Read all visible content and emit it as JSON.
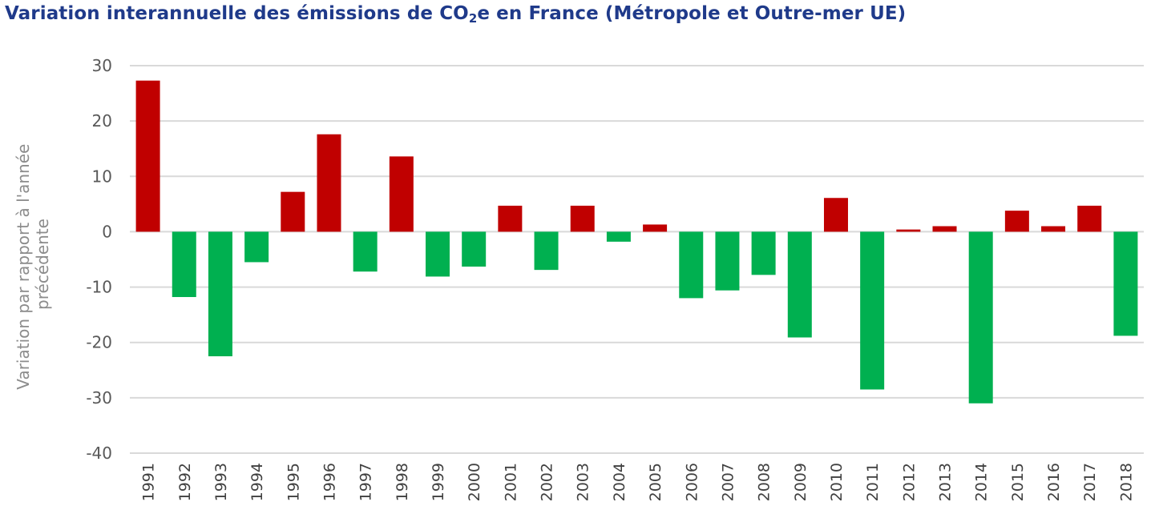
{
  "chart_data": {
    "type": "bar",
    "title": {
      "pre": "Variation interannuelle des émissions de CO",
      "sub": "2",
      "post": "e en France (Métropole et Outre-mer UE)"
    },
    "xlabel": "",
    "ylabel_lines": [
      "Variation par rapport à l'année",
      "précédente"
    ],
    "ylim": [
      -40,
      30
    ],
    "yticks": [
      30,
      20,
      10,
      0,
      -10,
      -20,
      -30,
      -40
    ],
    "grid": true,
    "legend": "none",
    "colors": {
      "positive": "#c00000",
      "negative": "#00b050",
      "grid": "#d9d9d9"
    },
    "categories": [
      "1991",
      "1992",
      "1993",
      "1994",
      "1995",
      "1996",
      "1997",
      "1998",
      "1999",
      "2000",
      "2001",
      "2002",
      "2003",
      "2004",
      "2005",
      "2006",
      "2007",
      "2008",
      "2009",
      "2010",
      "2011",
      "2012",
      "2013",
      "2014",
      "2015",
      "2016",
      "2017",
      "2018"
    ],
    "values": [
      27.3,
      -11.8,
      -22.5,
      -5.5,
      7.2,
      17.6,
      -7.2,
      13.6,
      -8.1,
      -6.3,
      4.7,
      -6.9,
      4.7,
      -1.8,
      1.3,
      -12.0,
      -10.6,
      -7.8,
      -19.1,
      6.1,
      -28.5,
      0.4,
      1.0,
      -31.0,
      3.8,
      1.0,
      4.7,
      -18.8
    ]
  }
}
